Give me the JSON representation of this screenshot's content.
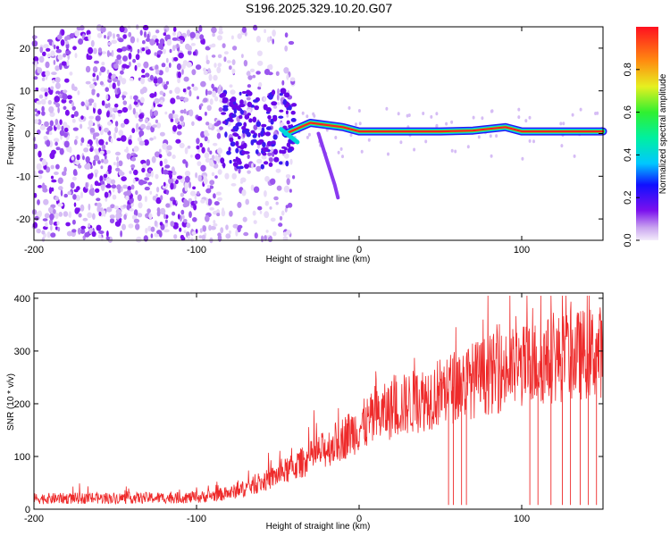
{
  "title": "S196.2025.329.10.20.G07",
  "chart_data": [
    {
      "type": "heatmap",
      "xlabel": "Height of straight line (km)",
      "ylabel": "Frequency (Hz)",
      "xlim": [
        -200,
        150
      ],
      "ylim": [
        -25,
        25
      ],
      "xticks": [
        -200,
        -100,
        0,
        100
      ],
      "xtick_labels": [
        "-200",
        "-100",
        "0",
        "100"
      ],
      "yticks": [
        -20,
        -10,
        0,
        10,
        20
      ],
      "ytick_labels": [
        "-20",
        "-10",
        "0",
        "10",
        "20"
      ],
      "colorbar": {
        "label": "Normalized spectral amplitude",
        "range": [
          0,
          1
        ],
        "ticks": [
          0.0,
          0.2,
          0.4,
          0.6,
          0.8
        ],
        "tick_labels": [
          "0.0",
          "0.2",
          "0.4",
          "0.6",
          "0.8"
        ]
      },
      "ridge": {
        "description_points": [
          {
            "x": -45,
            "y": 0
          },
          {
            "x": -30,
            "y": 2.5
          },
          {
            "x": -10,
            "y": 1.5
          },
          {
            "x": 0,
            "y": 0.5
          },
          {
            "x": 50,
            "y": 0.5
          },
          {
            "x": 70,
            "y": 0.7
          },
          {
            "x": 90,
            "y": 1.5
          },
          {
            "x": 100,
            "y": 0.5
          },
          {
            "x": 150,
            "y": 0.5
          }
        ],
        "branch": [
          {
            "x": -25,
            "y": 0
          },
          {
            "x": -20,
            "y": -6
          },
          {
            "x": -15,
            "y": -12
          },
          {
            "x": -13,
            "y": -15
          }
        ]
      }
    },
    {
      "type": "line",
      "series_color": "#ee2a2a",
      "xlabel": "Height of straight line (km)",
      "ylabel": "SNR (10 * v/v)",
      "xlim": [
        -200,
        150
      ],
      "ylim": [
        0,
        410
      ],
      "xticks": [
        -200,
        -100,
        0,
        100
      ],
      "xtick_labels": [
        "-200",
        "-100",
        "0",
        "100"
      ],
      "yticks": [
        0,
        100,
        200,
        300,
        400
      ],
      "ytick_labels": [
        "0",
        "100",
        "200",
        "300",
        "400"
      ],
      "trend": [
        {
          "x": -200,
          "y": 20
        },
        {
          "x": -100,
          "y": 22
        },
        {
          "x": -80,
          "y": 30
        },
        {
          "x": -60,
          "y": 50
        },
        {
          "x": -40,
          "y": 80
        },
        {
          "x": -20,
          "y": 115
        },
        {
          "x": 0,
          "y": 155
        },
        {
          "x": 20,
          "y": 190
        },
        {
          "x": 40,
          "y": 210
        },
        {
          "x": 60,
          "y": 235
        },
        {
          "x": 80,
          "y": 255
        },
        {
          "x": 100,
          "y": 270
        },
        {
          "x": 120,
          "y": 285
        },
        {
          "x": 150,
          "y": 300
        }
      ],
      "dropouts_x": [
        55,
        58,
        63,
        66,
        105,
        110,
        118,
        125,
        130,
        136,
        141,
        146
      ]
    }
  ]
}
